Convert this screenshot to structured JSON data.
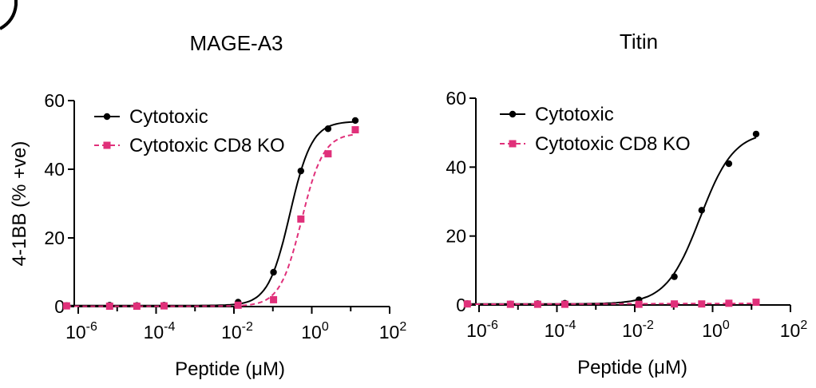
{
  "chart_data": [
    {
      "type": "line",
      "title": "MAGE-A3",
      "xlabel": "Peptide (μM)",
      "ylabel": "4-1BB (% +ve)",
      "xscale": "log",
      "xlim_exp": [
        -6,
        2
      ],
      "ylim": [
        0,
        60
      ],
      "yticks": [
        0,
        20,
        40,
        60
      ],
      "xticks": [
        {
          "base": "10",
          "exp": "-6"
        },
        {
          "base": "10",
          "exp": "-4"
        },
        {
          "base": "10",
          "exp": "-2"
        },
        {
          "base": "10",
          "exp": "0"
        },
        {
          "base": "10",
          "exp": "2"
        }
      ],
      "legend_position": "top-left",
      "series": [
        {
          "name": "Cytotoxic",
          "color": "#000000",
          "marker": "circle",
          "line_style": "solid",
          "x": [
            5e-07,
            6.4e-06,
            3.2e-05,
            0.00016,
            0.0128,
            0.104,
            0.524,
            2.62,
            13.1
          ],
          "y": [
            0.3,
            0.4,
            0.3,
            0.4,
            1.3,
            10,
            39.5,
            51.8,
            54.2
          ]
        },
        {
          "name": "Cytotoxic CD8 KO",
          "color": "#e0307a",
          "marker": "square",
          "line_style": "dashed",
          "x": [
            5e-07,
            6.4e-06,
            3.2e-05,
            0.00016,
            0.0128,
            0.104,
            0.524,
            2.62,
            13.1
          ],
          "y": [
            0.2,
            0.1,
            0.1,
            0.2,
            0.4,
            2,
            25.5,
            44.5,
            51.5
          ]
        }
      ]
    },
    {
      "type": "line",
      "title": "Titin",
      "xlabel": "Peptide (μM)",
      "ylabel": "",
      "xscale": "log",
      "xlim_exp": [
        -6,
        2
      ],
      "ylim": [
        0,
        60
      ],
      "yticks": [
        0,
        20,
        40,
        60
      ],
      "xticks": [
        {
          "base": "10",
          "exp": "-6"
        },
        {
          "base": "10",
          "exp": "-4"
        },
        {
          "base": "10",
          "exp": "-2"
        },
        {
          "base": "10",
          "exp": "0"
        },
        {
          "base": "10",
          "exp": "2"
        }
      ],
      "legend_position": "top-left",
      "series": [
        {
          "name": "Cytotoxic",
          "color": "#000000",
          "marker": "circle",
          "line_style": "solid",
          "x": [
            5e-07,
            6.4e-06,
            3.2e-05,
            0.00016,
            0.0128,
            0.104,
            0.524,
            2.62,
            13.1
          ],
          "y": [
            0.4,
            0.3,
            0.4,
            0.5,
            1.5,
            8.2,
            27.5,
            41,
            49.6
          ]
        },
        {
          "name": "Cytotoxic CD8 KO",
          "color": "#e0307a",
          "marker": "square",
          "line_style": "dashed",
          "x": [
            5e-07,
            6.4e-06,
            3.2e-05,
            0.00016,
            0.0128,
            0.104,
            0.524,
            2.62,
            13.1
          ],
          "y": [
            0.3,
            0.2,
            0.2,
            0.2,
            0.2,
            0.3,
            0.3,
            0.5,
            0.8
          ]
        }
      ]
    }
  ]
}
